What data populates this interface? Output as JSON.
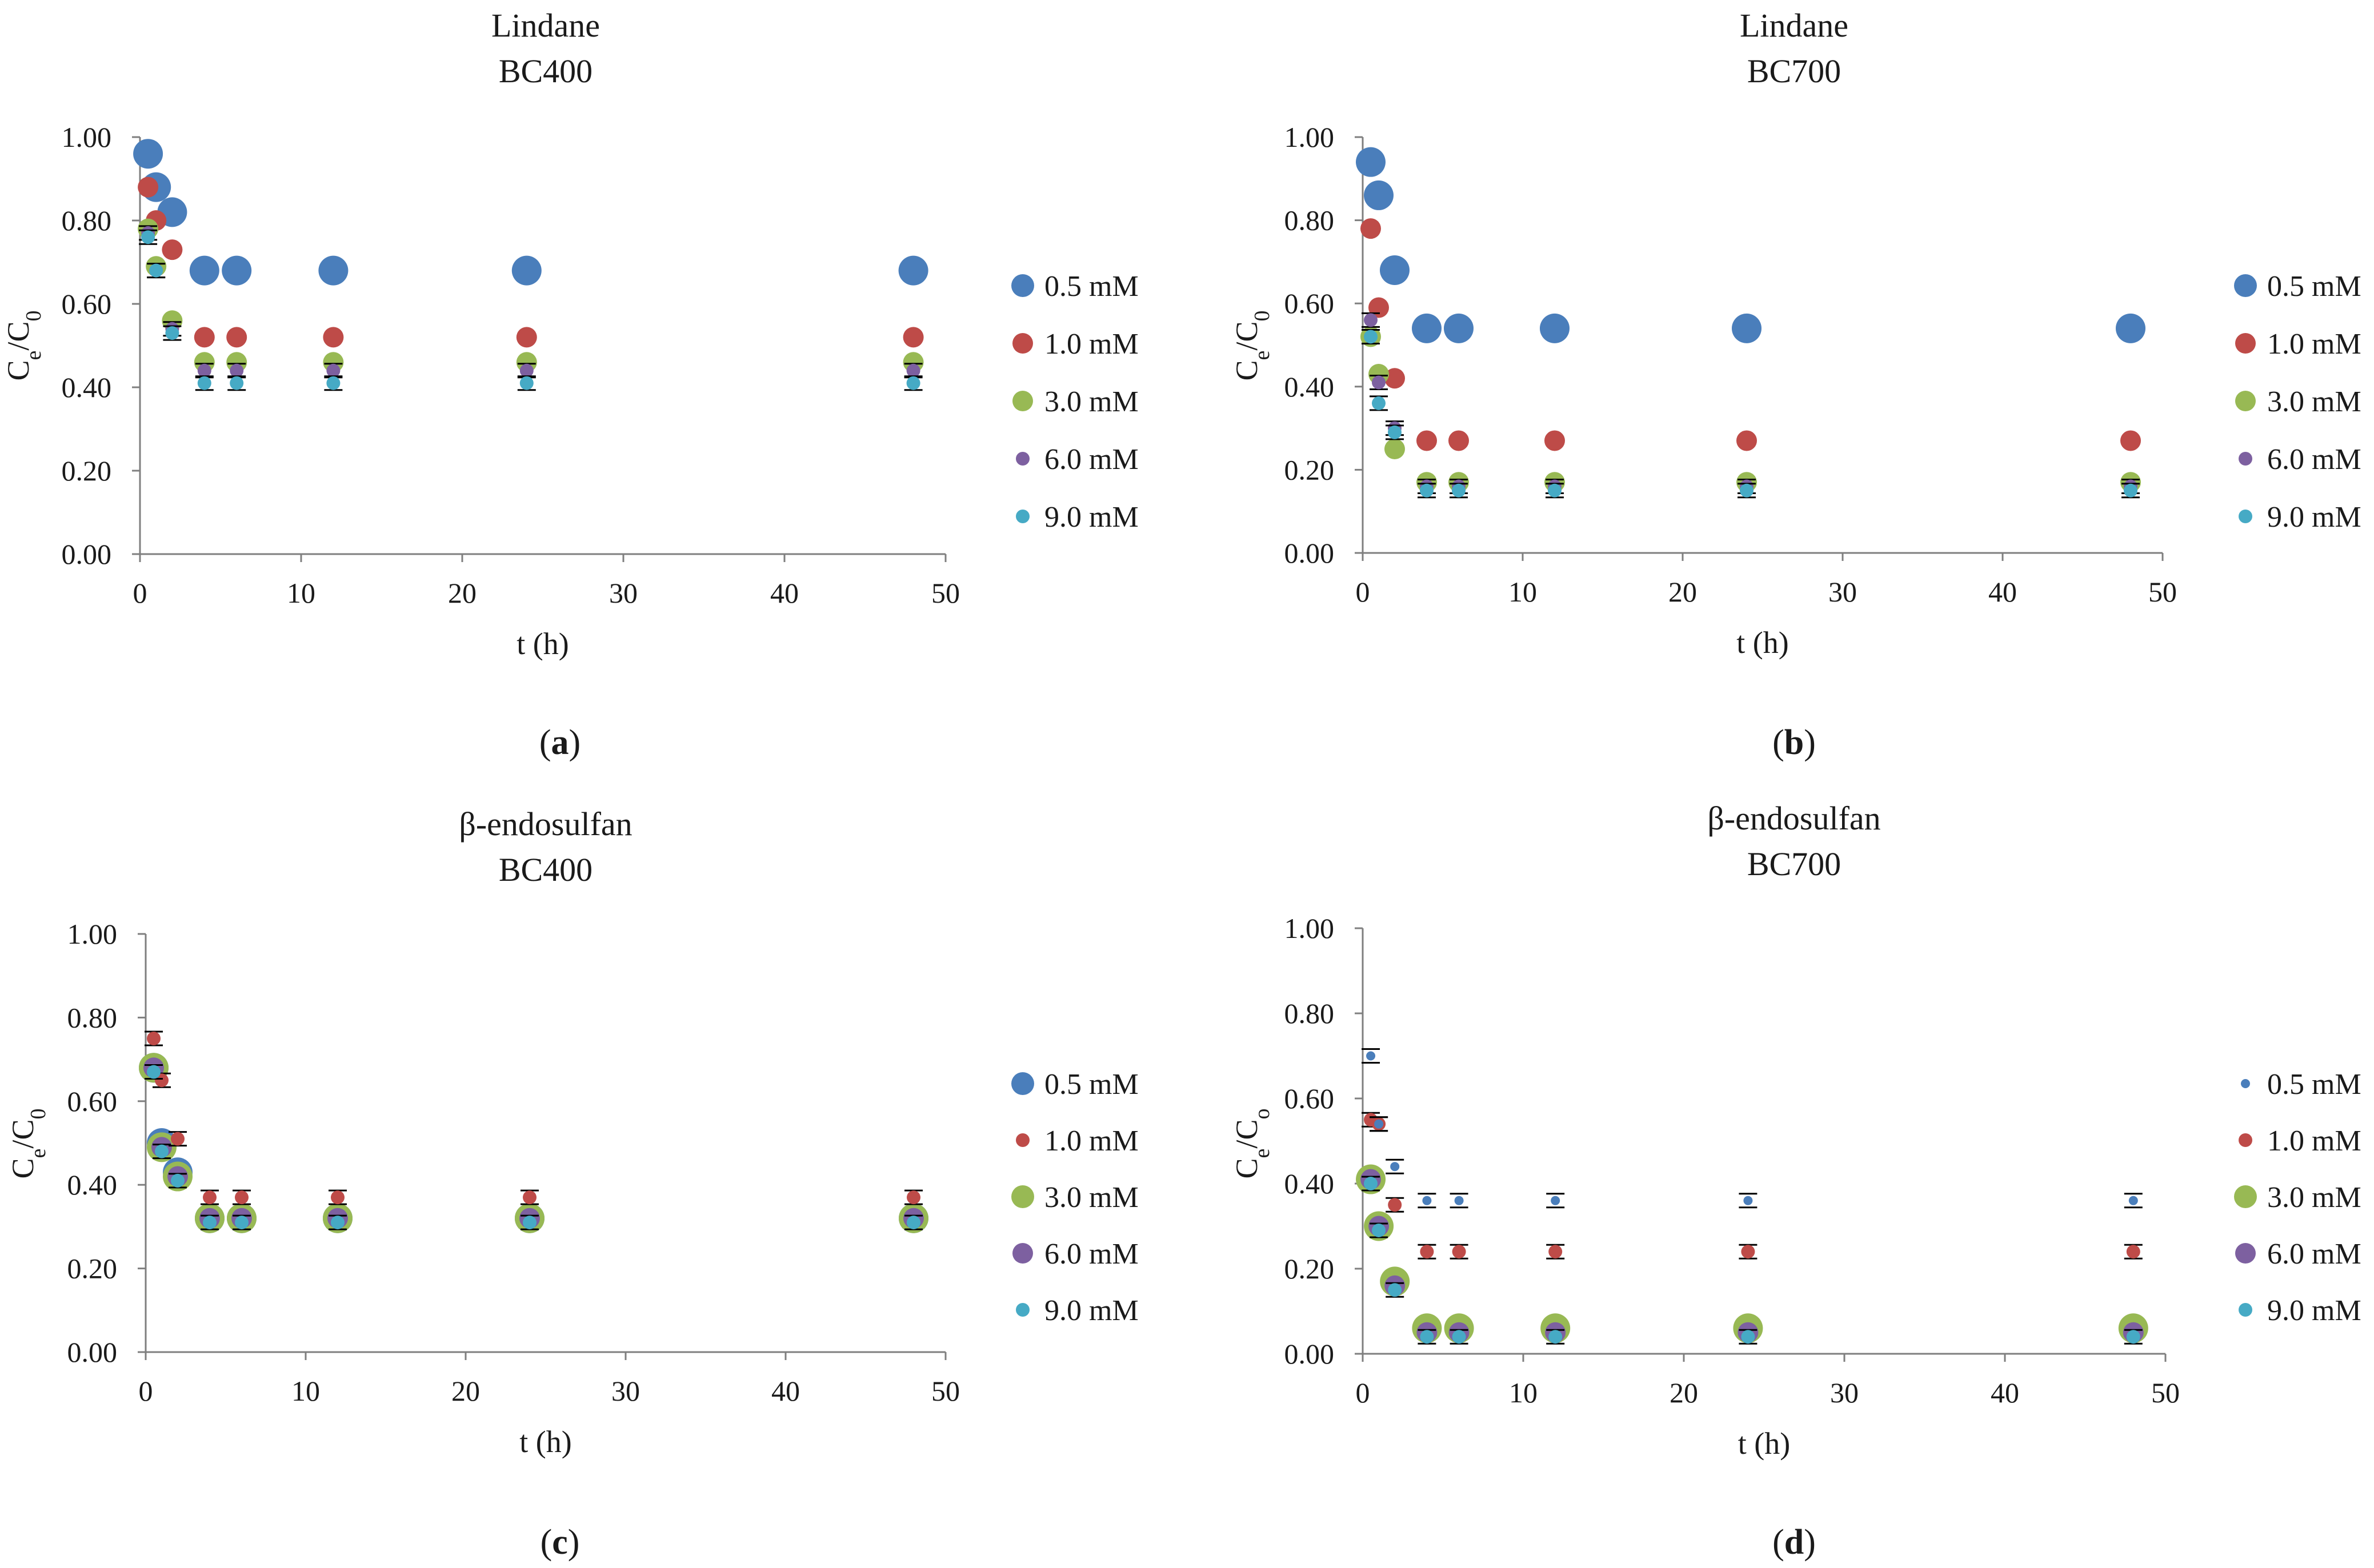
{
  "colors": {
    "s05": "#4a7ebb",
    "s10": "#be4b48",
    "s30": "#98b954",
    "s60": "#7d60a0",
    "s90": "#46aac5"
  },
  "chart_data": [
    {
      "type": "scatter",
      "panel_label": "a",
      "title": "Lindane",
      "subtitle": "BC400",
      "xlabel": "t (h)",
      "ylabel": "Ce/C0",
      "xlim": [
        0,
        50
      ],
      "ylim": [
        0,
        1
      ],
      "xticks": [
        "0",
        "10",
        "20",
        "30",
        "40",
        "50"
      ],
      "yticks": [
        "0.00",
        "0.20",
        "0.40",
        "0.60",
        "0.80",
        "1.00"
      ],
      "legend_position": "right",
      "grid": false,
      "series": [
        {
          "name": "0.5 mM",
          "color": "#4a7ebb",
          "marker_size": "large",
          "x": [
            0.5,
            1,
            2,
            4,
            6,
            12,
            24,
            48
          ],
          "y": [
            0.96,
            0.88,
            0.82,
            0.68,
            0.68,
            0.68,
            0.68,
            0.68
          ]
        },
        {
          "name": "1.0 mM",
          "color": "#be4b48",
          "marker_size": "medium",
          "x": [
            0.5,
            1,
            2,
            4,
            6,
            12,
            24,
            48
          ],
          "y": [
            0.88,
            0.8,
            0.73,
            0.52,
            0.52,
            0.52,
            0.52,
            0.52
          ]
        },
        {
          "name": "3.0 mM",
          "color": "#98b954",
          "marker_size": "medium",
          "x": [
            0.5,
            1,
            2,
            4,
            6,
            12,
            24,
            48
          ],
          "y": [
            0.78,
            0.69,
            0.56,
            0.46,
            0.46,
            0.46,
            0.46,
            0.46
          ]
        },
        {
          "name": "6.0 mM",
          "color": "#7d60a0",
          "marker_size": "small",
          "x": [
            0.5,
            1,
            2,
            4,
            6,
            12,
            24,
            48
          ],
          "y": [
            0.77,
            0.68,
            0.54,
            0.44,
            0.44,
            0.44,
            0.44,
            0.44
          ]
        },
        {
          "name": "9.0 mM",
          "color": "#46aac5",
          "marker_size": "small",
          "x": [
            0.5,
            1,
            2,
            4,
            6,
            12,
            24,
            48
          ],
          "y": [
            0.76,
            0.68,
            0.53,
            0.41,
            0.41,
            0.41,
            0.41,
            0.41
          ]
        }
      ]
    },
    {
      "type": "scatter",
      "panel_label": "b",
      "title": "Lindane",
      "subtitle": "BC700",
      "xlabel": "t (h)",
      "ylabel": "Ce/C0",
      "xlim": [
        0,
        50
      ],
      "ylim": [
        0,
        1
      ],
      "xticks": [
        "0",
        "10",
        "20",
        "30",
        "40",
        "50"
      ],
      "yticks": [
        "0.00",
        "0.20",
        "0.40",
        "0.60",
        "0.80",
        "1.00"
      ],
      "legend_position": "right",
      "grid": false,
      "series": [
        {
          "name": "0.5 mM",
          "color": "#4a7ebb",
          "marker_size": "large",
          "x": [
            0.5,
            1,
            2,
            4,
            6,
            12,
            24,
            48
          ],
          "y": [
            0.94,
            0.86,
            0.68,
            0.54,
            0.54,
            0.54,
            0.54,
            0.54
          ]
        },
        {
          "name": "1.0 mM",
          "color": "#be4b48",
          "marker_size": "medium",
          "x": [
            0.5,
            1,
            2,
            4,
            6,
            12,
            24,
            48
          ],
          "y": [
            0.78,
            0.59,
            0.42,
            0.27,
            0.27,
            0.27,
            0.27,
            0.27
          ]
        },
        {
          "name": "3.0 mM",
          "color": "#98b954",
          "marker_size": "medium",
          "x": [
            0.5,
            1,
            2,
            4,
            6,
            12,
            24,
            48
          ],
          "y": [
            0.52,
            0.43,
            0.25,
            0.17,
            0.17,
            0.17,
            0.17,
            0.17
          ]
        },
        {
          "name": "6.0 mM",
          "color": "#7d60a0",
          "marker_size": "small",
          "x": [
            0.5,
            1,
            2,
            4,
            6,
            12,
            24,
            48
          ],
          "y": [
            0.56,
            0.41,
            0.3,
            0.16,
            0.16,
            0.16,
            0.16,
            0.16
          ]
        },
        {
          "name": "9.0 mM",
          "color": "#46aac5",
          "marker_size": "small",
          "x": [
            0.5,
            1,
            2,
            4,
            6,
            12,
            24,
            48
          ],
          "y": [
            0.52,
            0.36,
            0.29,
            0.15,
            0.15,
            0.15,
            0.15,
            0.15
          ]
        }
      ]
    },
    {
      "type": "scatter",
      "panel_label": "c",
      "title": "β-endosulfan",
      "subtitle": "BC400",
      "xlabel": "t (h)",
      "ylabel": "Ce/C0",
      "xlim": [
        0,
        50
      ],
      "ylim": [
        0,
        1
      ],
      "xticks": [
        "0",
        "10",
        "20",
        "30",
        "40",
        "50"
      ],
      "yticks": [
        "0.00",
        "0.20",
        "0.40",
        "0.60",
        "0.80",
        "1.00"
      ],
      "legend_position": "right",
      "grid": false,
      "series": [
        {
          "name": "0.5 mM",
          "color": "#4a7ebb",
          "marker_size": "large",
          "x": [
            0.5,
            1,
            2,
            4,
            6,
            12,
            24,
            48
          ],
          "y": [
            0.68,
            0.5,
            0.43,
            0.32,
            0.32,
            0.32,
            0.32,
            0.32
          ]
        },
        {
          "name": "1.0 mM",
          "color": "#be4b48",
          "marker_size": "small",
          "x": [
            0.5,
            1,
            2,
            4,
            6,
            12,
            24,
            48
          ],
          "y": [
            0.75,
            0.65,
            0.51,
            0.37,
            0.37,
            0.37,
            0.37,
            0.37
          ]
        },
        {
          "name": "3.0 mM",
          "color": "#98b954",
          "marker_size": "large",
          "x": [
            0.5,
            1,
            2,
            4,
            6,
            12,
            24,
            48
          ],
          "y": [
            0.68,
            0.49,
            0.42,
            0.32,
            0.32,
            0.32,
            0.32,
            0.32
          ]
        },
        {
          "name": "6.0 mM",
          "color": "#7d60a0",
          "marker_size": "medium",
          "x": [
            0.5,
            1,
            2,
            4,
            6,
            12,
            24,
            48
          ],
          "y": [
            0.68,
            0.49,
            0.42,
            0.32,
            0.32,
            0.32,
            0.32,
            0.32
          ]
        },
        {
          "name": "9.0 mM",
          "color": "#46aac5",
          "marker_size": "small",
          "x": [
            0.5,
            1,
            2,
            4,
            6,
            12,
            24,
            48
          ],
          "y": [
            0.67,
            0.48,
            0.41,
            0.31,
            0.31,
            0.31,
            0.31,
            0.31
          ]
        }
      ]
    },
    {
      "type": "scatter",
      "panel_label": "d",
      "title": "β-endosulfan",
      "subtitle": "BC700",
      "xlabel": "t (h)",
      "ylabel": "Ce/Co",
      "xlim": [
        0,
        50
      ],
      "ylim": [
        0,
        1
      ],
      "xticks": [
        "0",
        "10",
        "20",
        "30",
        "40",
        "50"
      ],
      "yticks": [
        "0.00",
        "0.20",
        "0.40",
        "0.60",
        "0.80",
        "1.00"
      ],
      "legend_position": "right",
      "grid": false,
      "series": [
        {
          "name": "0.5 mM",
          "color": "#4a7ebb",
          "marker_size": "tiny",
          "x": [
            0.5,
            1,
            2,
            4,
            6,
            12,
            24,
            48
          ],
          "y": [
            0.7,
            0.54,
            0.44,
            0.36,
            0.36,
            0.36,
            0.36,
            0.36
          ]
        },
        {
          "name": "1.0 mM",
          "color": "#be4b48",
          "marker_size": "small",
          "x": [
            0.5,
            1,
            2,
            4,
            6,
            12,
            24,
            48
          ],
          "y": [
            0.55,
            0.54,
            0.35,
            0.24,
            0.24,
            0.24,
            0.24,
            0.24
          ]
        },
        {
          "name": "3.0 mM",
          "color": "#98b954",
          "marker_size": "large",
          "x": [
            0.5,
            1,
            2,
            4,
            6,
            12,
            24,
            48
          ],
          "y": [
            0.41,
            0.3,
            0.17,
            0.06,
            0.06,
            0.06,
            0.06,
            0.06
          ]
        },
        {
          "name": "6.0 mM",
          "color": "#7d60a0",
          "marker_size": "medium",
          "x": [
            0.5,
            1,
            2,
            4,
            6,
            12,
            24,
            48
          ],
          "y": [
            0.41,
            0.3,
            0.16,
            0.05,
            0.05,
            0.05,
            0.05,
            0.05
          ]
        },
        {
          "name": "9.0 mM",
          "color": "#46aac5",
          "marker_size": "small",
          "x": [
            0.5,
            1,
            2,
            4,
            6,
            12,
            24,
            48
          ],
          "y": [
            0.4,
            0.29,
            0.15,
            0.04,
            0.04,
            0.04,
            0.04,
            0.04
          ]
        }
      ]
    }
  ]
}
